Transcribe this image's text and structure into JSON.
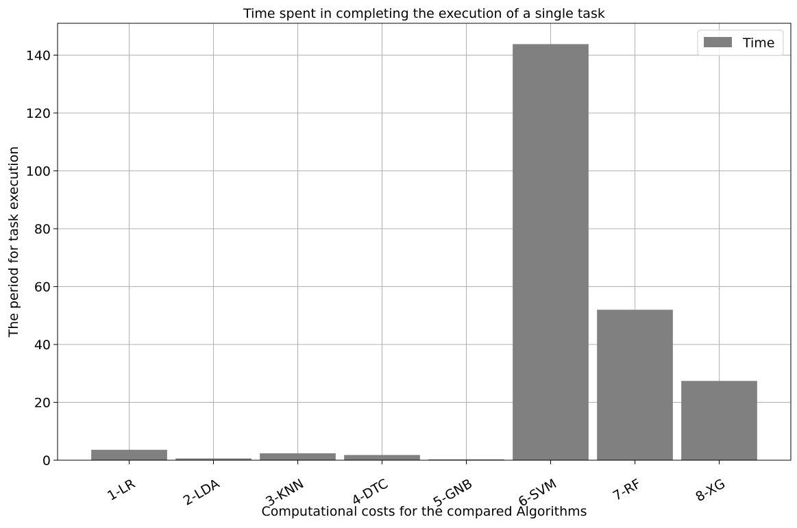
{
  "chart_data": {
    "type": "bar",
    "title": "Time spent in completing the execution of a single task",
    "xlabel": "Computational costs for the compared Algorithms",
    "ylabel": "The period for task execution",
    "categories": [
      "1-LR",
      "2-LDA",
      "3-KNN",
      "4-DTC",
      "5-GNB",
      "6-SVM",
      "7-RF",
      "8-XG"
    ],
    "series": [
      {
        "name": "Time",
        "values": [
          3.6,
          0.6,
          2.4,
          1.8,
          0.3,
          143.8,
          52.0,
          27.4
        ],
        "color": "#808080"
      }
    ],
    "ylim": [
      0,
      151
    ],
    "yticks": [
      0,
      20,
      40,
      60,
      80,
      100,
      120,
      140
    ],
    "grid": true,
    "legend_position": "top-right",
    "xtick_rotation_deg": -30
  }
}
